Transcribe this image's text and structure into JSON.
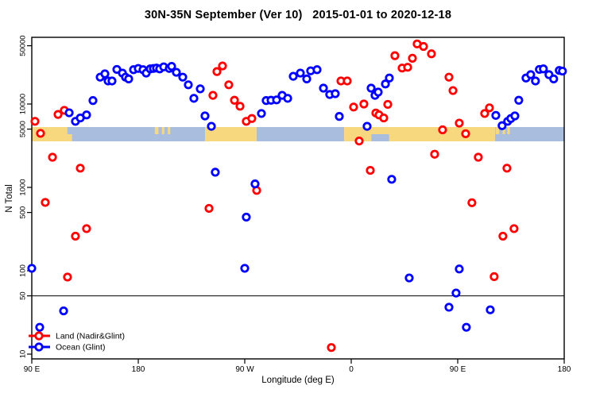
{
  "title": "30N-35N September (Ver 10)   2015-01-01 to 2020-12-18",
  "chart_data": {
    "type": "scatter",
    "title": "30N-35N September (Ver 10)   2015-01-01 to 2020-12-18",
    "xlabel": "Longitude (deg E)",
    "ylabel": "N Total",
    "x_axis": {
      "note": "longitude axis starts at 90E, wraps eastward 450 degrees, ends at 180",
      "span_deg": 450,
      "tick_deg": [
        0,
        90,
        180,
        270,
        360,
        450
      ],
      "tick_labels": [
        "90 E",
        "180",
        "90 W",
        "0",
        "90 E",
        "180"
      ]
    },
    "y_axis": {
      "scale": "log",
      "tick_values": [
        10,
        50,
        100,
        500,
        1000,
        5000,
        10000,
        50000
      ],
      "range": [
        9,
        63000
      ]
    },
    "reference_line_value": 50,
    "map_strip": {
      "ocean_color": "#a9bede",
      "land_color": "#f8d87e",
      "segments": [
        {
          "type": "land",
          "from": 0,
          "to": 30
        },
        {
          "type": "ocean",
          "from": 30,
          "to": 146.5
        },
        {
          "type": "land",
          "from": 146.5,
          "to": 190
        },
        {
          "type": "ocean",
          "from": 190,
          "to": 264
        },
        {
          "type": "land",
          "from": 264,
          "to": 391.5
        },
        {
          "type": "ocean",
          "from": 391.5,
          "to": 450
        }
      ],
      "details": [
        {
          "type": "land",
          "from": 30,
          "to": 34,
          "half": "bottom"
        },
        {
          "type": "land",
          "from": 104,
          "to": 107,
          "half": "top"
        },
        {
          "type": "land",
          "from": 110,
          "to": 112,
          "half": "top"
        },
        {
          "type": "land",
          "from": 115,
          "to": 117,
          "half": "top"
        },
        {
          "type": "ocean",
          "from": 287,
          "to": 302,
          "half": "bottom"
        },
        {
          "type": "land",
          "from": 392,
          "to": 395,
          "half": "top"
        },
        {
          "type": "land",
          "from": 398,
          "to": 400,
          "half": "top"
        },
        {
          "type": "land",
          "from": 402,
          "to": 404,
          "half": "top"
        }
      ]
    },
    "series": [
      {
        "name": "Land (Nadir&Glint)",
        "color": "#ff0000",
        "points": [
          [
            2.7,
            6200
          ],
          [
            7.4,
            4450
          ],
          [
            11.4,
            660
          ],
          [
            17.5,
            2300
          ],
          [
            22.2,
            7500
          ],
          [
            27.5,
            8400
          ],
          [
            30.2,
            84
          ],
          [
            36.9,
            260
          ],
          [
            41,
            1700
          ],
          [
            46.3,
            320
          ],
          [
            149.8,
            560
          ],
          [
            153.1,
            12700
          ],
          [
            156.5,
            24500
          ],
          [
            161.2,
            28600
          ],
          [
            166.5,
            17000
          ],
          [
            171.3,
            11100
          ],
          [
            176,
            9400
          ],
          [
            181.3,
            6200
          ],
          [
            186,
            6700
          ],
          [
            190.1,
            920
          ],
          [
            253.2,
            12
          ],
          [
            261.3,
            18900
          ],
          [
            266.6,
            18900
          ],
          [
            272,
            9200
          ],
          [
            276.7,
            3600
          ],
          [
            280.7,
            10000
          ],
          [
            286.1,
            1600
          ],
          [
            290.8,
            7800
          ],
          [
            293.5,
            7400
          ],
          [
            297.5,
            6800
          ],
          [
            300.9,
            9900
          ],
          [
            306.9,
            38000
          ],
          [
            313,
            27000
          ],
          [
            317.7,
            27600
          ],
          [
            321.7,
            35400
          ],
          [
            325.7,
            52600
          ],
          [
            331.1,
            49000
          ],
          [
            337.8,
            40000
          ],
          [
            340.5,
            2500
          ],
          [
            347.2,
            4900
          ],
          [
            352.6,
            21000
          ],
          [
            356,
            14500
          ],
          [
            361.3,
            5900
          ],
          [
            366.7,
            4400
          ],
          [
            372,
            655
          ],
          [
            377.4,
            2300
          ],
          [
            382.8,
            7700
          ],
          [
            386.8,
            9000
          ],
          [
            390.8,
            85
          ],
          [
            398.2,
            260
          ],
          [
            401.6,
            1700
          ],
          [
            407.6,
            320
          ]
        ]
      },
      {
        "name": "Ocean (Glint)",
        "color": "#0000ff",
        "points": [
          [
            0,
            107
          ],
          [
            6.7,
            21
          ],
          [
            26.9,
            33
          ],
          [
            31.6,
            7850
          ],
          [
            36.9,
            6200
          ],
          [
            41,
            6800
          ],
          [
            46.3,
            7400
          ],
          [
            51.7,
            11000
          ],
          [
            57.8,
            21000
          ],
          [
            61.8,
            23000
          ],
          [
            64.5,
            18900
          ],
          [
            67.8,
            18900
          ],
          [
            71.9,
            26000
          ],
          [
            76.6,
            23500
          ],
          [
            79.2,
            21000
          ],
          [
            81.9,
            20000
          ],
          [
            86,
            25800
          ],
          [
            90,
            26700
          ],
          [
            94,
            25800
          ],
          [
            96.7,
            23500
          ],
          [
            100.1,
            26400
          ],
          [
            102.8,
            26700
          ],
          [
            105.4,
            27000
          ],
          [
            108.1,
            26400
          ],
          [
            111.5,
            27900
          ],
          [
            116.2,
            26700
          ],
          [
            118.2,
            28300
          ],
          [
            122.2,
            24000
          ],
          [
            127.6,
            21000
          ],
          [
            132.3,
            17000
          ],
          [
            137,
            11700
          ],
          [
            142.4,
            15200
          ],
          [
            146.4,
            7200
          ],
          [
            151.8,
            5400
          ],
          [
            155.1,
            1520
          ],
          [
            180,
            107
          ],
          [
            181.3,
            440
          ],
          [
            188.7,
            1100
          ],
          [
            194.1,
            7700
          ],
          [
            198.1,
            11000
          ],
          [
            202.2,
            11100
          ],
          [
            206.9,
            11200
          ],
          [
            211.6,
            12700
          ],
          [
            216.3,
            11700
          ],
          [
            221,
            21500
          ],
          [
            227,
            23500
          ],
          [
            232.4,
            20000
          ],
          [
            235.7,
            25000
          ],
          [
            241.1,
            25800
          ],
          [
            246.5,
            15500
          ],
          [
            251.8,
            13000
          ],
          [
            256.5,
            13300
          ],
          [
            259.9,
            7100
          ],
          [
            283.4,
            5400
          ],
          [
            286.8,
            15500
          ],
          [
            290.1,
            12700
          ],
          [
            292.8,
            13900
          ],
          [
            298.9,
            17400
          ],
          [
            302.2,
            20500
          ],
          [
            304.2,
            1250
          ],
          [
            319,
            82
          ],
          [
            352.6,
            36.5
          ],
          [
            358.6,
            54
          ],
          [
            361.3,
            105
          ],
          [
            367.3,
            21
          ],
          [
            387.5,
            34
          ],
          [
            392.2,
            7300
          ],
          [
            397.5,
            5500
          ],
          [
            402.2,
            6200
          ],
          [
            404.9,
            6700
          ],
          [
            408.3,
            7200
          ],
          [
            411.6,
            11100
          ],
          [
            417.7,
            20500
          ],
          [
            421.7,
            22500
          ],
          [
            425.7,
            18900
          ],
          [
            429,
            26000
          ],
          [
            432.4,
            26400
          ],
          [
            437.1,
            22500
          ],
          [
            441.1,
            20000
          ],
          [
            445.8,
            25300
          ],
          [
            448.5,
            24800
          ]
        ]
      }
    ],
    "legend": {
      "position": "bottom-left",
      "items": [
        "Land (Nadir&Glint)",
        "Ocean (Glint)"
      ]
    }
  }
}
